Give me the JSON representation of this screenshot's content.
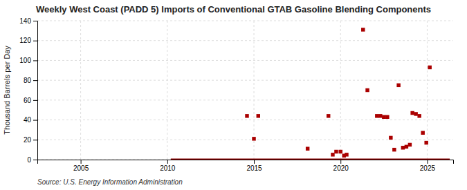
{
  "chart_data": {
    "type": "scatter",
    "title": "Weekly West Coast (PADD 5) Imports of Conventional GTAB Gasoline Blending Components",
    "y_label": "Thousand Barrels per Day",
    "source": "Source: U.S. Energy Information Administration",
    "x": [
      2014.6,
      2015.0,
      2015.25,
      2018.1,
      2019.3,
      2019.55,
      2019.75,
      2020.0,
      2020.2,
      2020.35,
      2021.3,
      2021.55,
      2022.1,
      2022.3,
      2022.5,
      2022.7,
      2022.9,
      2023.1,
      2023.35,
      2023.6,
      2023.8,
      2024.0,
      2024.15,
      2024.35,
      2024.55,
      2024.75,
      2024.95,
      2025.15
    ],
    "values": [
      44,
      21,
      44,
      11,
      44,
      5,
      8,
      8,
      4,
      5,
      131,
      70,
      44,
      44,
      43,
      43,
      22,
      10,
      75,
      12,
      13,
      15,
      47,
      46,
      44,
      27,
      17,
      93
    ],
    "color": "#aa0000",
    "marker": "square",
    "xlim": [
      2002.5,
      2026.5
    ],
    "ylim": [
      0,
      140
    ],
    "xticks": [
      2005,
      2010,
      2015,
      2020,
      2025
    ],
    "yticks": [
      0,
      20,
      40,
      60,
      80,
      100,
      120,
      140
    ],
    "grid": true,
    "zero_line": {
      "y": 0,
      "x": [
        2010.2,
        2026.3
      ],
      "color": "#8b0000"
    }
  }
}
